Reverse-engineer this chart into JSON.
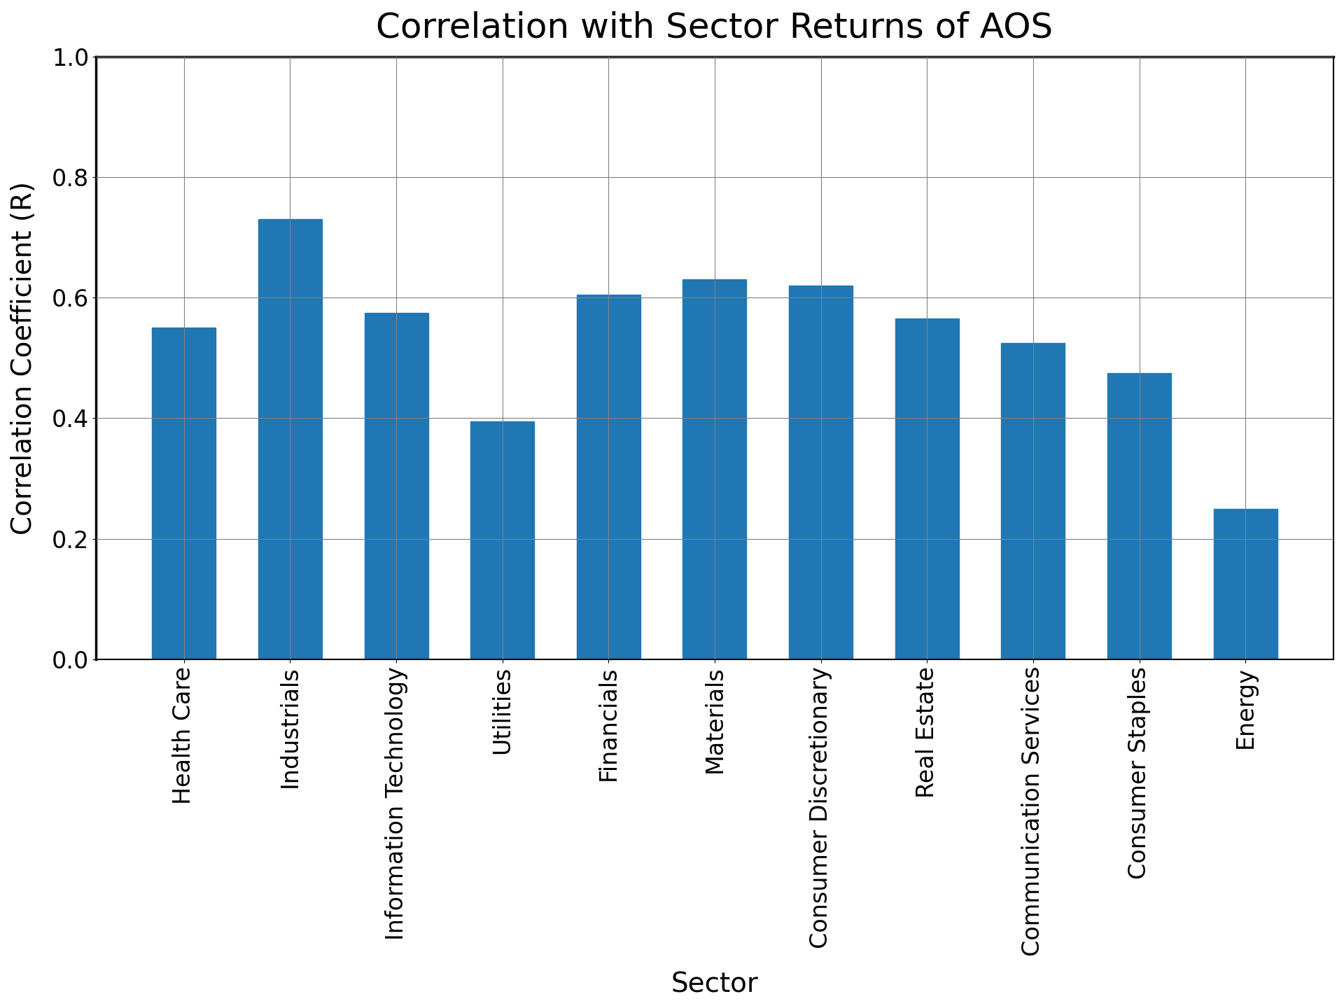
{
  "title": "Correlation with Sector Returns of AOS",
  "xlabel": "Sector",
  "ylabel": "Correlation Coefficient (R)",
  "categories": [
    "Health Care",
    "Industrials",
    "Information Technology",
    "Utilities",
    "Financials",
    "Materials",
    "Consumer Discretionary",
    "Real Estate",
    "Communication Services",
    "Consumer Staples",
    "Energy"
  ],
  "values": [
    0.55,
    0.73,
    0.575,
    0.395,
    0.605,
    0.63,
    0.62,
    0.565,
    0.525,
    0.475,
    0.25
  ],
  "bar_color": "#2077b4",
  "ylim": [
    0.0,
    1.0
  ],
  "yticks": [
    0.0,
    0.2,
    0.4,
    0.6,
    0.8,
    1.0
  ],
  "title_fontsize": 36,
  "label_fontsize": 28,
  "tick_fontsize": 24,
  "background_color": "#ffffff",
  "grid": true
}
